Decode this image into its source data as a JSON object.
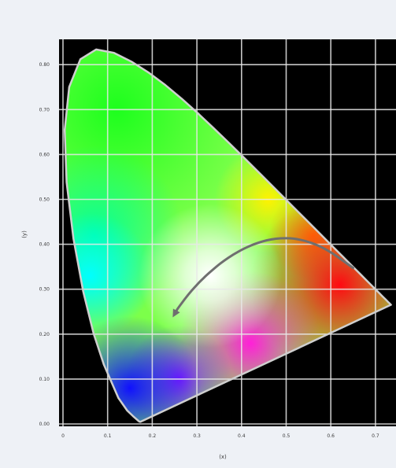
{
  "diagram": {
    "type": "cie-1931-chromaticity-diagram",
    "x_axis": {
      "label": "(x)",
      "ticks": [
        "0",
        "0.1",
        "0.2",
        "0.3",
        "0.4",
        "0.5",
        "0.6",
        "0.7"
      ],
      "range": [
        0,
        0.74
      ]
    },
    "y_axis": {
      "label": "(y)",
      "ticks": [
        "0.00",
        "0.10",
        "0.20",
        "0.30",
        "0.40",
        "0.50",
        "0.60",
        "0.70",
        "0.80"
      ],
      "range": [
        0,
        0.84
      ]
    },
    "grid": true,
    "background_color": "#000000",
    "grid_color": "#e8e8e8",
    "locus_outline_color": "#cfcfcf",
    "planckian_locus_color": "#6f6f6f",
    "planckian_locus_arrow": "toward-blue (decreasing color temperature reversed)",
    "spectral_locus": [
      [
        0.1741,
        0.005
      ],
      [
        0.1738,
        0.0049
      ],
      [
        0.1714,
        0.0051
      ],
      [
        0.1689,
        0.0069
      ],
      [
        0.1644,
        0.0109
      ],
      [
        0.1566,
        0.0177
      ],
      [
        0.144,
        0.0297
      ],
      [
        0.1241,
        0.0578
      ],
      [
        0.0913,
        0.1327
      ],
      [
        0.0687,
        0.2007
      ],
      [
        0.0454,
        0.295
      ],
      [
        0.0235,
        0.4127
      ],
      [
        0.0082,
        0.5384
      ],
      [
        0.0039,
        0.6548
      ],
      [
        0.0139,
        0.7502
      ],
      [
        0.0389,
        0.812
      ],
      [
        0.0743,
        0.8338
      ],
      [
        0.1142,
        0.8262
      ],
      [
        0.1547,
        0.8059
      ],
      [
        0.1929,
        0.7816
      ],
      [
        0.2296,
        0.7543
      ],
      [
        0.2658,
        0.7243
      ],
      [
        0.3016,
        0.6923
      ],
      [
        0.3373,
        0.6589
      ],
      [
        0.3731,
        0.6245
      ],
      [
        0.4087,
        0.5896
      ],
      [
        0.4441,
        0.5547
      ],
      [
        0.4788,
        0.5202
      ],
      [
        0.5125,
        0.4866
      ],
      [
        0.5448,
        0.4544
      ],
      [
        0.5752,
        0.4242
      ],
      [
        0.6029,
        0.3965
      ],
      [
        0.627,
        0.3725
      ],
      [
        0.6482,
        0.3514
      ],
      [
        0.6658,
        0.334
      ],
      [
        0.6801,
        0.3197
      ],
      [
        0.6915,
        0.3083
      ],
      [
        0.7006,
        0.2993
      ],
      [
        0.7079,
        0.292
      ],
      [
        0.714,
        0.2859
      ],
      [
        0.719,
        0.2809
      ],
      [
        0.723,
        0.277
      ],
      [
        0.726,
        0.274
      ],
      [
        0.7283,
        0.2717
      ],
      [
        0.73,
        0.27
      ],
      [
        0.7347,
        0.2653
      ]
    ],
    "planckian_locus": [
      [
        0.6499,
        0.3474
      ],
      [
        0.5857,
        0.3931
      ],
      [
        0.5267,
        0.4133
      ],
      [
        0.477,
        0.4137
      ],
      [
        0.4369,
        0.4041
      ],
      [
        0.4053,
        0.3907
      ],
      [
        0.3805,
        0.3768
      ],
      [
        0.3608,
        0.3636
      ],
      [
        0.3451,
        0.3516
      ],
      [
        0.3221,
        0.3318
      ],
      [
        0.3064,
        0.3166
      ],
      [
        0.2952,
        0.3048
      ],
      [
        0.2806,
        0.2883
      ],
      [
        0.2648,
        0.2673
      ],
      [
        0.2565,
        0.2564
      ],
      [
        0.25,
        0.245
      ]
    ]
  }
}
